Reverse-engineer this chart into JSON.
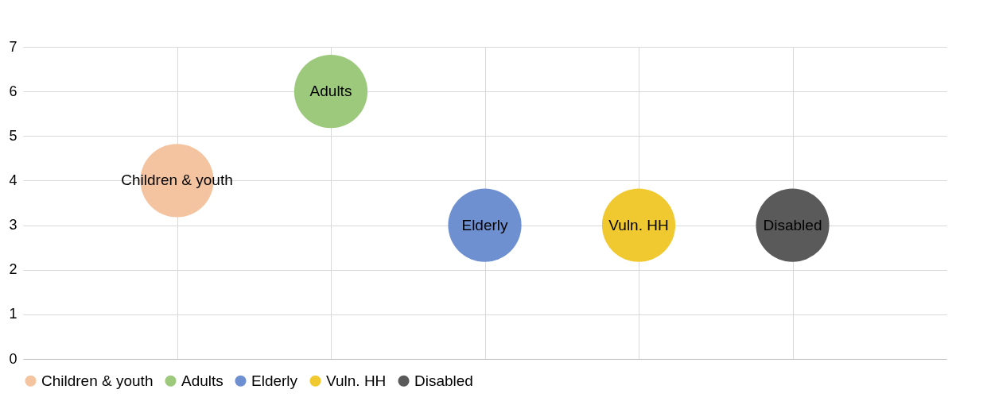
{
  "chart_data": {
    "type": "bubble",
    "categories": [
      null,
      null,
      null,
      null,
      null
    ],
    "ylim": [
      0,
      7
    ],
    "yticks": [
      0,
      1,
      2,
      3,
      4,
      5,
      6,
      7
    ],
    "grid": true,
    "legend": "bottom",
    "tick_labels": "y",
    "series": [
      {
        "name": "Children & youth",
        "color": "#f4c4a0",
        "values": [
          4,
          null,
          null,
          null,
          null
        ],
        "sizes": [
          1,
          null,
          null,
          null,
          null
        ]
      },
      {
        "name": "Adults",
        "color": "#9cc97c",
        "values": [
          null,
          6,
          null,
          null,
          null
        ],
        "sizes": [
          null,
          1,
          null,
          null,
          null
        ]
      },
      {
        "name": "Elderly",
        "color": "#6f90d0",
        "values": [
          null,
          null,
          3,
          null,
          null
        ],
        "sizes": [
          null,
          null,
          1,
          null,
          null
        ]
      },
      {
        "name": "Vuln. HH",
        "color": "#f0c930",
        "values": [
          null,
          null,
          null,
          3,
          null
        ],
        "sizes": [
          null,
          null,
          null,
          1,
          null
        ]
      },
      {
        "name": "Disabled",
        "color": "#5a5a5a",
        "values": [
          null,
          null,
          null,
          null,
          3
        ],
        "sizes": [
          null,
          null,
          null,
          null,
          1
        ]
      }
    ]
  }
}
